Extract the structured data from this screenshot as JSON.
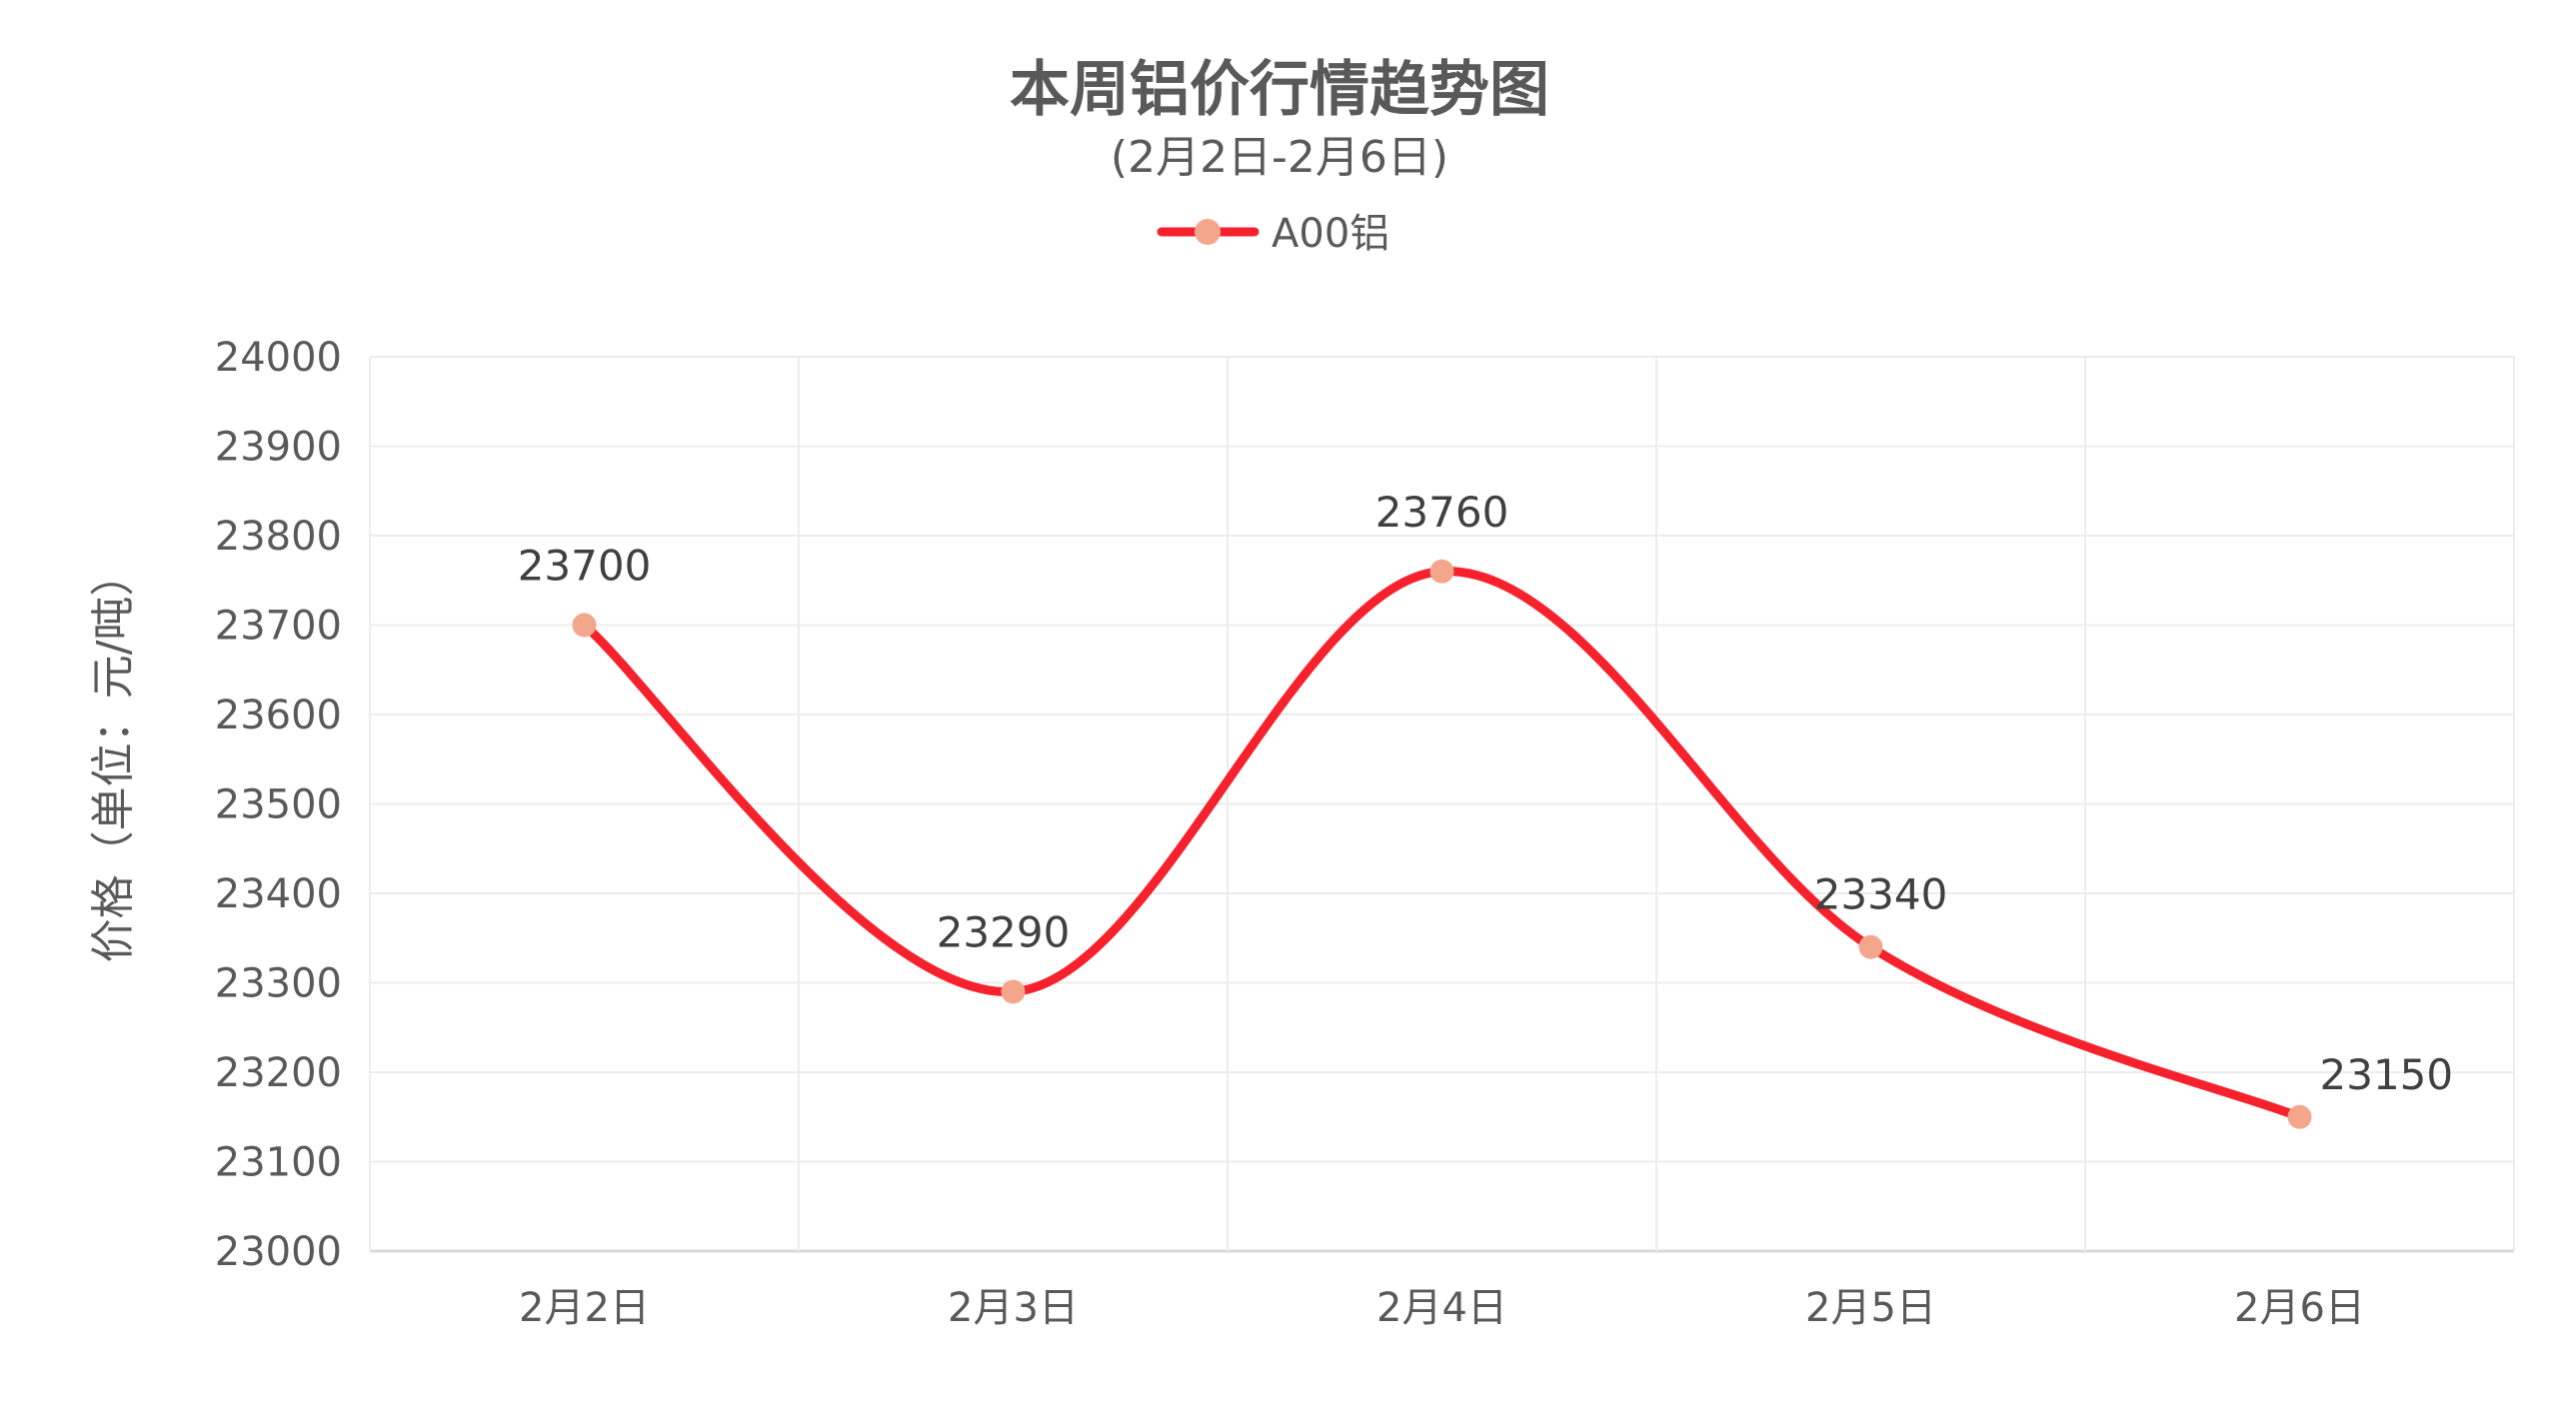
{
  "chart_data": {
    "type": "line",
    "title": "本周铝价行情趋势图",
    "subtitle": "(2月2日-2月6日)",
    "ylabel": "价格（单位：元/吨）",
    "xlabel": "",
    "categories": [
      "2月2日",
      "2月3日",
      "2月4日",
      "2月5日",
      "2月6日"
    ],
    "series": [
      {
        "name": "A00铝",
        "values": [
          23700,
          23290,
          23760,
          23340,
          23150
        ],
        "line_color": "#f5222d",
        "marker_color": "#f4a68c"
      }
    ],
    "ylim": [
      23000,
      24000
    ],
    "yticks": [
      23000,
      23100,
      23200,
      23300,
      23400,
      23500,
      23600,
      23700,
      23800,
      23900,
      24000
    ],
    "grid": true,
    "smooth": true,
    "legend_position": "top-center",
    "data_labels": true
  }
}
